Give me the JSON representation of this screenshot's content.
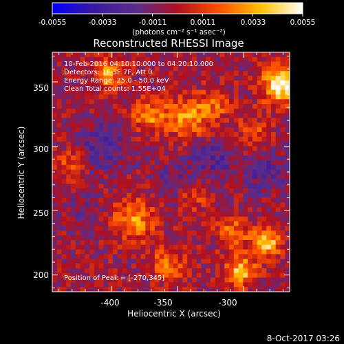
{
  "colorbar": {
    "tick_labels": [
      "-0.0055",
      "-0.0033",
      "-0.0011",
      "0.0011",
      "0.0033",
      "0.0055"
    ],
    "units_label": "(photons cm⁻² s⁻¹ asec⁻²)",
    "range": [
      -0.0055,
      0.0055
    ],
    "colors": [
      "#0000ff",
      "#3a1a9c",
      "#5a2d8c",
      "#b01020",
      "#ff5000",
      "#ffc000",
      "#ffffff"
    ]
  },
  "plot": {
    "title": "Reconstructed RHESSI Image",
    "xlabel": "Heliocentric X (arcsec)",
    "ylabel": "Heliocentric Y (arcsec)",
    "annotations": [
      "10-Feb-2016 04:10:10.000 to 04:20:10.000",
      "Detectors: 1F 5F 7F, Att 0",
      "Energy Range: 25.0 - 50.0 keV",
      "Clean     Total counts: 1.55E+04"
    ],
    "peak_label": "Position of Peak = [-270,345]",
    "timestamp": "8-Oct-2017 03:26"
  },
  "chart_data": {
    "type": "heatmap",
    "title": "Reconstructed RHESSI Image",
    "xlabel": "Heliocentric X (arcsec)",
    "ylabel": "Heliocentric Y (arcsec)",
    "xlim": [
      -445,
      -265
    ],
    "ylim": [
      187,
      373
    ],
    "xticks": [
      -400,
      -350,
      -300
    ],
    "yticks": [
      200,
      250,
      300,
      350
    ],
    "value_range": [
      -0.0055,
      0.0055
    ],
    "peak_position": [
      -270,
      345
    ],
    "blobs": [
      {
        "x": -272,
        "y": 348,
        "amp": 0.0055,
        "sigma": 10
      },
      {
        "x": -403,
        "y": 357,
        "amp": 0.0034,
        "sigma": 9
      },
      {
        "x": -372,
        "y": 324,
        "amp": 0.0033,
        "sigma": 9
      },
      {
        "x": -343,
        "y": 322,
        "amp": 0.0035,
        "sigma": 11
      },
      {
        "x": -321,
        "y": 331,
        "amp": 0.0022,
        "sigma": 9
      },
      {
        "x": -293,
        "y": 311,
        "amp": 0.002,
        "sigma": 9
      },
      {
        "x": -338,
        "y": 260,
        "amp": 0.002,
        "sigma": 7
      },
      {
        "x": -383,
        "y": 243,
        "amp": 0.0034,
        "sigma": 11
      },
      {
        "x": -309,
        "y": 235,
        "amp": 0.0026,
        "sigma": 9
      },
      {
        "x": -283,
        "y": 225,
        "amp": 0.0047,
        "sigma": 8
      },
      {
        "x": -302,
        "y": 203,
        "amp": 0.0042,
        "sigma": 8
      },
      {
        "x": -358,
        "y": 208,
        "amp": 0.0028,
        "sigma": 9
      },
      {
        "x": -432,
        "y": 285,
        "amp": 0.0018,
        "sigma": 9
      },
      {
        "x": -407,
        "y": 300,
        "amp": -0.002,
        "sigma": 12
      },
      {
        "x": -323,
        "y": 290,
        "amp": -0.0018,
        "sigma": 12
      },
      {
        "x": -283,
        "y": 280,
        "amp": -0.0016,
        "sigma": 11
      },
      {
        "x": -355,
        "y": 273,
        "amp": -0.0014,
        "sigma": 9
      },
      {
        "x": -420,
        "y": 250,
        "amp": -0.001,
        "sigma": 10
      }
    ]
  }
}
